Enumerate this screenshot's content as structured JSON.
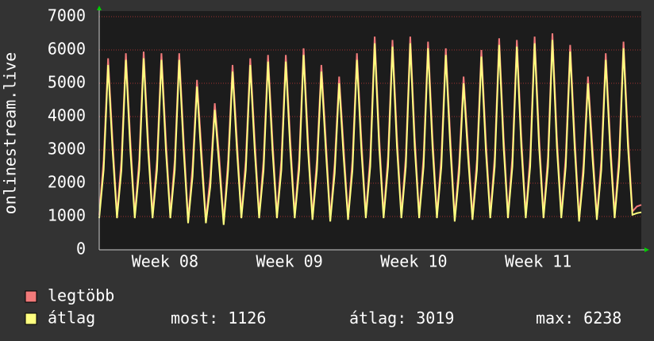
{
  "chart_data": {
    "type": "line",
    "y_label": "onlinestream.live",
    "xlim": [
      0,
      30.5
    ],
    "xticks": [
      {
        "value": 3.7,
        "label": "Week 08"
      },
      {
        "value": 10.7,
        "label": "Week 09"
      },
      {
        "value": 17.7,
        "label": "Week 10"
      },
      {
        "value": 24.7,
        "label": "Week 11"
      }
    ],
    "ylim": [
      0,
      7000
    ],
    "yticks": [
      0,
      1000,
      2000,
      3000,
      4000,
      5000,
      6000,
      7000
    ],
    "grid": true,
    "x": [
      0,
      0.25,
      0.5,
      0.75,
      1,
      1.25,
      1.5,
      1.75,
      2,
      2.25,
      2.5,
      2.75,
      3,
      3.25,
      3.5,
      3.75,
      4,
      4.25,
      4.5,
      4.75,
      5,
      5.25,
      5.5,
      5.75,
      6,
      6.25,
      6.5,
      6.75,
      7,
      7.25,
      7.5,
      7.75,
      8,
      8.25,
      8.5,
      8.75,
      9,
      9.25,
      9.5,
      9.75,
      10,
      10.25,
      10.5,
      10.75,
      11,
      11.25,
      11.5,
      11.75,
      12,
      12.25,
      12.5,
      12.75,
      13,
      13.25,
      13.5,
      13.75,
      14,
      14.25,
      14.5,
      14.75,
      15,
      15.25,
      15.5,
      15.75,
      16,
      16.25,
      16.5,
      16.75,
      17,
      17.25,
      17.5,
      17.75,
      18,
      18.25,
      18.5,
      18.75,
      19,
      19.25,
      19.5,
      19.75,
      20,
      20.25,
      20.5,
      20.75,
      21,
      21.25,
      21.5,
      21.75,
      22,
      22.25,
      22.5,
      22.75,
      23,
      23.25,
      23.5,
      23.75,
      24,
      24.25,
      24.5,
      24.75,
      25,
      25.25,
      25.5,
      25.75,
      26,
      26.25,
      26.5,
      26.75,
      27,
      27.25,
      27.5,
      27.75,
      28,
      28.25,
      28.5,
      28.75,
      29,
      29.25,
      29.5,
      29.75,
      30,
      30.25,
      30.5
    ],
    "series": [
      {
        "name": "legtöbb",
        "color": "#f27a7a",
        "values": [
          1050,
          2700,
          5750,
          3300,
          1050,
          2700,
          5900,
          3300,
          1050,
          2700,
          5950,
          3300,
          1050,
          2700,
          5900,
          3300,
          1050,
          2700,
          5900,
          3300,
          900,
          2500,
          5100,
          3000,
          900,
          2200,
          4400,
          2800,
          850,
          2700,
          5550,
          3300,
          1050,
          2700,
          5750,
          3300,
          1050,
          2700,
          5850,
          3300,
          1050,
          2700,
          5850,
          3300,
          1050,
          2700,
          6050,
          3300,
          1000,
          2700,
          5550,
          3300,
          950,
          2600,
          5200,
          3100,
          1000,
          2700,
          5900,
          3300,
          1050,
          2800,
          6400,
          3400,
          1050,
          2800,
          6300,
          3400,
          1050,
          2800,
          6400,
          3400,
          1050,
          2800,
          6250,
          3400,
          1050,
          2800,
          6050,
          3400,
          950,
          2600,
          5200,
          3100,
          1000,
          2700,
          6000,
          3300,
          1050,
          2800,
          6350,
          3400,
          1050,
          2800,
          6300,
          3400,
          1050,
          2800,
          6400,
          3400,
          1050,
          2800,
          6500,
          3400,
          1050,
          2800,
          6150,
          3400,
          950,
          2600,
          5200,
          3100,
          1000,
          2700,
          5900,
          3300,
          1050,
          2800,
          6250,
          3400,
          1150,
          1300,
          1350
        ]
      },
      {
        "name": "átlag",
        "color": "#ffff80",
        "values": [
          950,
          2400,
          5550,
          3000,
          950,
          2400,
          5700,
          3000,
          950,
          2400,
          5750,
          3000,
          950,
          2400,
          5700,
          3000,
          950,
          2400,
          5700,
          3000,
          800,
          2200,
          4900,
          2700,
          800,
          1900,
          4200,
          2500,
          750,
          2400,
          5350,
          3000,
          950,
          2400,
          5550,
          3000,
          950,
          2400,
          5650,
          3000,
          950,
          2400,
          5650,
          3000,
          950,
          2400,
          5850,
          3000,
          900,
          2400,
          5350,
          3000,
          850,
          2300,
          5000,
          2800,
          900,
          2400,
          5700,
          3000,
          950,
          2500,
          6200,
          3100,
          950,
          2500,
          6100,
          3100,
          950,
          2500,
          6200,
          3100,
          950,
          2500,
          6050,
          3100,
          950,
          2500,
          5850,
          3100,
          850,
          2300,
          5000,
          2800,
          900,
          2400,
          5800,
          3000,
          950,
          2500,
          6150,
          3100,
          950,
          2500,
          6100,
          3100,
          950,
          2500,
          6200,
          3100,
          950,
          2500,
          6300,
          3100,
          950,
          2500,
          5950,
          3100,
          850,
          2300,
          5000,
          2800,
          900,
          2400,
          5700,
          3000,
          950,
          2500,
          6050,
          3100,
          1050,
          1100,
          1126
        ]
      }
    ],
    "stats": [
      {
        "label": "most:",
        "value": 1126
      },
      {
        "label": "átlag:",
        "value": 3019
      },
      {
        "label": "max:",
        "value": 6238
      }
    ]
  }
}
